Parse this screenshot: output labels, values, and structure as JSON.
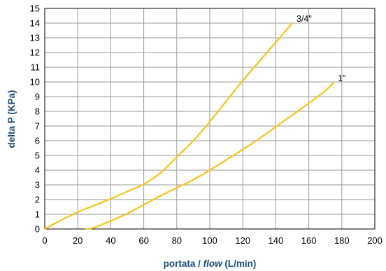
{
  "chart_data": {
    "type": "line",
    "xlabel_parts": [
      "portata / ",
      "flow",
      " (L/min)"
    ],
    "ylabel": "delta P (KPa)",
    "xlim": [
      0,
      200
    ],
    "ylim": [
      0,
      15
    ],
    "x_ticks": [
      0,
      20,
      40,
      60,
      80,
      100,
      120,
      140,
      160,
      180,
      200
    ],
    "y_ticks": [
      0,
      1,
      2,
      3,
      4,
      5,
      6,
      7,
      8,
      9,
      10,
      11,
      12,
      13,
      14,
      15
    ],
    "grid": true,
    "line_color": "#f5c518",
    "grid_color": "#9a9a9a",
    "axis_title_color": "#1f4e79",
    "series": [
      {
        "name": "3/4\"",
        "x": [
          0,
          10,
          20,
          30,
          40,
          50,
          60,
          70,
          80,
          90,
          100,
          110,
          120,
          130,
          140,
          150
        ],
        "y": [
          0,
          0.6,
          1.15,
          1.6,
          2.05,
          2.55,
          3.05,
          3.8,
          4.9,
          6.0,
          7.3,
          8.7,
          10.1,
          11.4,
          12.7,
          14.0
        ]
      },
      {
        "name": "1\"",
        "x": [
          25,
          30,
          40,
          50,
          60,
          70,
          80,
          90,
          100,
          110,
          120,
          130,
          140,
          150,
          160,
          170,
          175
        ],
        "y": [
          0,
          0.1,
          0.55,
          1.05,
          1.65,
          2.25,
          2.8,
          3.35,
          4.0,
          4.7,
          5.4,
          6.15,
          6.95,
          7.75,
          8.55,
          9.4,
          9.95
        ]
      }
    ]
  }
}
